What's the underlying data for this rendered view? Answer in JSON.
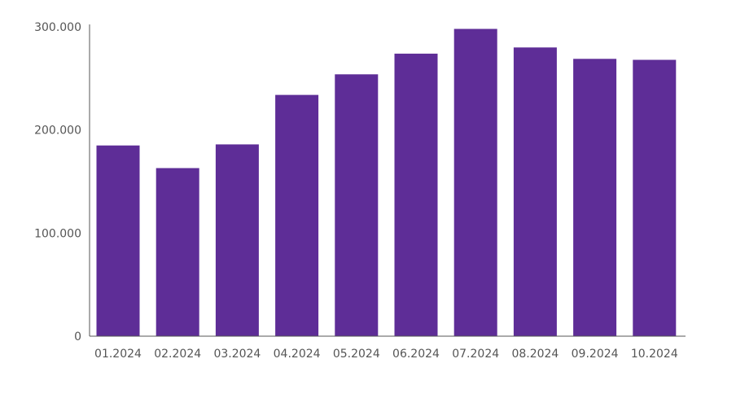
{
  "chart_data": {
    "type": "bar",
    "categories": [
      "01.2024",
      "02.2024",
      "03.2024",
      "04.2024",
      "05.2024",
      "06.2024",
      "07.2024",
      "08.2024",
      "09.2024",
      "10.2024"
    ],
    "values": [
      185000,
      163000,
      186000,
      234000,
      254000,
      274000,
      298000,
      280000,
      269000,
      268000
    ],
    "ylim": [
      0,
      300000
    ],
    "yticks": [
      0,
      100000,
      200000,
      300000
    ],
    "ytick_labels": [
      "0",
      "100.000",
      "200.000",
      "300.000"
    ],
    "grid": false,
    "legend": "none",
    "bar_color": "#5e2d97",
    "axis_color": "#555555"
  }
}
